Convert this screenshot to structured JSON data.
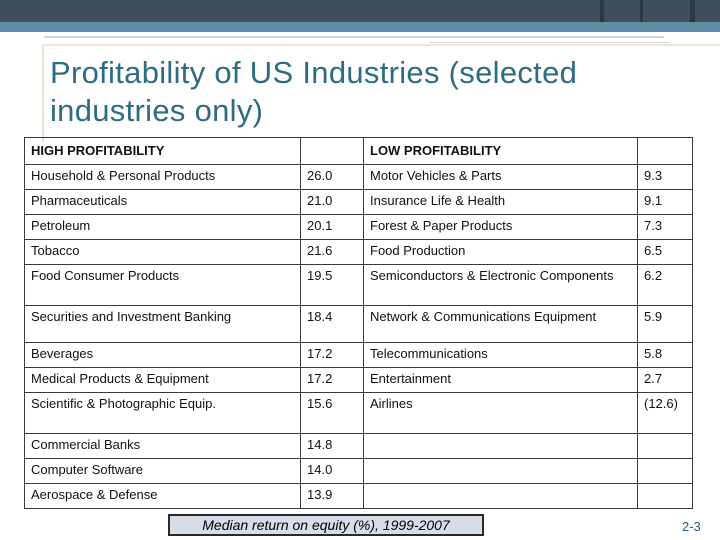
{
  "slide": {
    "title": "Profitability of US Industries (selected industries only)",
    "caption": "Median return on equity (%), 1999-2007",
    "slide_number": "2-3"
  },
  "table": {
    "headers": {
      "high": "HIGH PROFITABILITY",
      "low": "LOW PROFITABILITY"
    },
    "rows": [
      {
        "high_industry": "Household & Personal Products",
        "high_value": "26.0",
        "low_industry": "Motor Vehicles & Parts",
        "low_value": "9.3"
      },
      {
        "high_industry": "Pharmaceuticals",
        "high_value": "21.0",
        "low_industry": "Insurance Life & Health",
        "low_value": "9.1"
      },
      {
        "high_industry": "Petroleum",
        "high_value": "20.1",
        "low_industry": "Forest & Paper Products",
        "low_value": "7.3"
      },
      {
        "high_industry": "Tobacco",
        "high_value": "21.6",
        "low_industry": "Food Production",
        "low_value": "6.5"
      },
      {
        "high_industry": "Food Consumer Products",
        "high_value": "19.5",
        "low_industry": "Semiconductors & Electronic Components",
        "low_value": "6.2"
      },
      {
        "high_industry": "Securities and Investment Banking",
        "high_value": "18.4",
        "low_industry": "Network & Communications Equipment",
        "low_value": "5.9"
      },
      {
        "high_industry": "Beverages",
        "high_value": "17.2",
        "low_industry": "Telecommunications",
        "low_value": "5.8"
      },
      {
        "high_industry": "Medical Products & Equipment",
        "high_value": "17.2",
        "low_industry": "Entertainment",
        "low_value": "2.7"
      },
      {
        "high_industry": "Scientific & Photographic Equip.",
        "high_value": "15.6",
        "low_industry": "Airlines",
        "low_value": "(12.6)"
      },
      {
        "high_industry": "Commercial Banks",
        "high_value": "14.8",
        "low_industry": "",
        "low_value": ""
      },
      {
        "high_industry": "Computer Software",
        "high_value": "14.0",
        "low_industry": "",
        "low_value": ""
      },
      {
        "high_industry": "Aerospace & Defense",
        "high_value": "13.9",
        "low_industry": "",
        "low_value": ""
      }
    ]
  }
}
